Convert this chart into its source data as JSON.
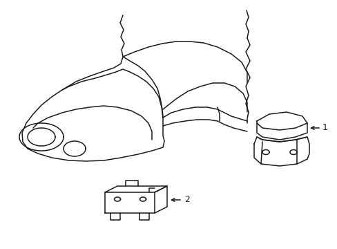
{
  "bg_color": "#ffffff",
  "line_color": "#1a1a1a",
  "line_width": 1.1,
  "label_1": "1",
  "label_2": "2",
  "label_fontsize": 9,
  "figsize": [
    4.89,
    3.6
  ],
  "dpi": 100
}
